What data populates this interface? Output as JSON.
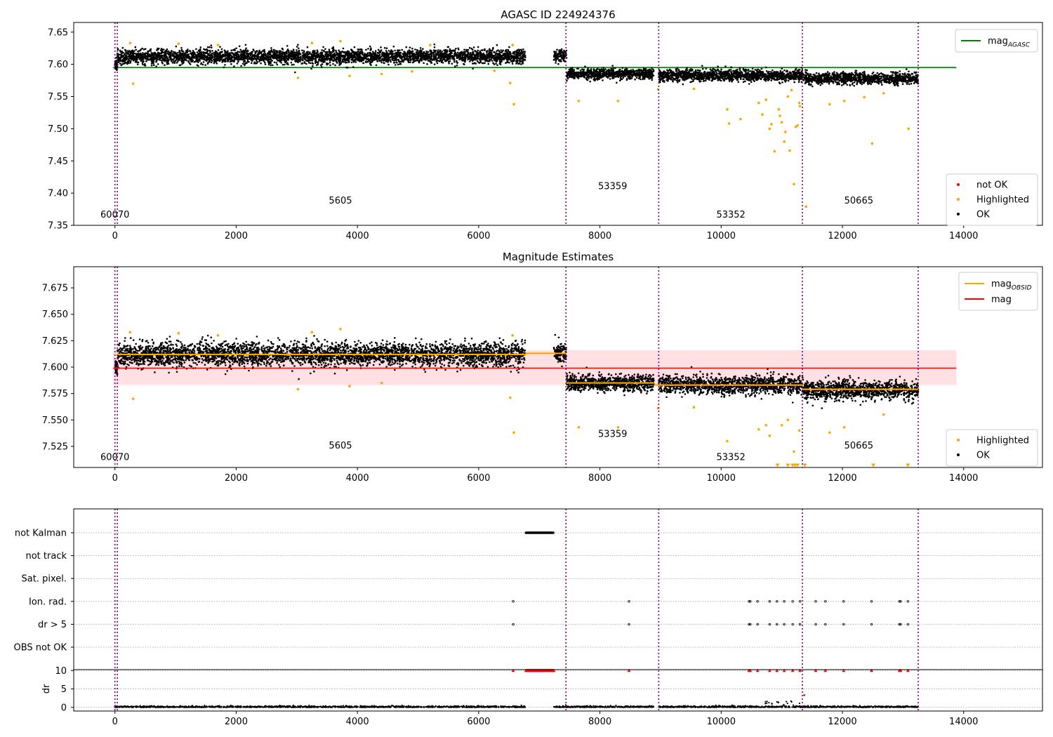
{
  "chart_data": [
    {
      "type": "scatter",
      "title": "AGASC ID 224924376",
      "xlim": [
        -680,
        15300
      ],
      "ylim": [
        7.35,
        7.665
      ],
      "x_ticks": [
        0,
        2000,
        4000,
        6000,
        8000,
        10000,
        12000,
        14000
      ],
      "y_ticks": [
        7.35,
        7.4,
        7.45,
        7.5,
        7.55,
        7.6,
        7.65
      ],
      "y_tick_labels": [
        "7.35",
        "7.40",
        "7.45",
        "7.50",
        "7.55",
        "7.60",
        "7.65"
      ],
      "legend_upper": {
        "position": "upper right",
        "entries": [
          {
            "label": "mag",
            "subscript": "AGASC",
            "color": "#008000",
            "marker": "line"
          }
        ]
      },
      "legend_lower": {
        "position": "lower right",
        "entries": [
          {
            "label": "not OK",
            "color": "#ff0000",
            "marker": "dot"
          },
          {
            "label": "Highlighted",
            "color": "#ffa500",
            "marker": "dot"
          },
          {
            "label": "OK",
            "color": "#000000",
            "marker": "dot"
          }
        ]
      },
      "hlines": [
        {
          "name": "mag_AGASC",
          "y": 7.595,
          "x": [
            -30,
            13880
          ],
          "color": "#008000"
        }
      ],
      "obsid_boundaries": [
        0,
        40,
        7440,
        8970,
        11340,
        13250
      ],
      "obsid_labels": [
        {
          "text": "60070",
          "x": 0,
          "y": 7.362
        },
        {
          "text": "5605",
          "x": 3720,
          "y": 7.384
        },
        {
          "text": "53359",
          "x": 8210,
          "y": 7.406
        },
        {
          "text": "53352",
          "x": 10160,
          "y": 7.362
        },
        {
          "text": "50665",
          "x": 12270,
          "y": 7.384
        }
      ],
      "ok_segments": [
        {
          "x": [
            0,
            40
          ],
          "mean": 7.599,
          "spread": 0.007
        },
        {
          "x": [
            40,
            6770
          ],
          "mean": 7.612,
          "spread": 0.01
        },
        {
          "x": [
            7240,
            7450
          ],
          "mean": 7.613,
          "spread": 0.008
        },
        {
          "x": [
            7450,
            8890
          ],
          "mean": 7.585,
          "spread": 0.007
        },
        {
          "x": [
            8970,
            11340
          ],
          "mean": 7.583,
          "spread": 0.008
        },
        {
          "x": [
            11340,
            13250
          ],
          "mean": 7.578,
          "spread": 0.008
        }
      ],
      "highlighted_points": [
        [
          300,
          7.57
        ],
        [
          3020,
          7.579
        ],
        [
          3870,
          7.582
        ],
        [
          4400,
          7.585
        ],
        [
          6520,
          7.571
        ],
        [
          6580,
          7.538
        ],
        [
          4900,
          7.589
        ],
        [
          6260,
          7.59
        ],
        [
          7650,
          7.543
        ],
        [
          8300,
          7.543
        ],
        [
          8960,
          7.561
        ],
        [
          9550,
          7.562
        ],
        [
          10100,
          7.53
        ],
        [
          10130,
          7.508
        ],
        [
          10320,
          7.515
        ],
        [
          10620,
          7.54
        ],
        [
          10680,
          7.522
        ],
        [
          10740,
          7.545
        ],
        [
          10800,
          7.5
        ],
        [
          10830,
          7.507
        ],
        [
          10880,
          7.465
        ],
        [
          10950,
          7.53
        ],
        [
          10970,
          7.52
        ],
        [
          11000,
          7.51
        ],
        [
          11040,
          7.48
        ],
        [
          11060,
          7.495
        ],
        [
          11100,
          7.55
        ],
        [
          11130,
          7.466
        ],
        [
          11160,
          7.56
        ],
        [
          11200,
          7.414
        ],
        [
          11230,
          7.503
        ],
        [
          11260,
          7.505
        ],
        [
          11290,
          7.54
        ],
        [
          11300,
          7.535
        ],
        [
          11400,
          7.379
        ],
        [
          11790,
          7.538
        ],
        [
          12030,
          7.543
        ],
        [
          12360,
          7.549
        ],
        [
          12680,
          7.555
        ],
        [
          12490,
          7.477
        ],
        [
          13090,
          7.5
        ],
        [
          250,
          7.633
        ],
        [
          1050,
          7.632
        ],
        [
          1700,
          7.63
        ],
        [
          3250,
          7.633
        ],
        [
          3720,
          7.636
        ],
        [
          5200,
          7.63
        ],
        [
          6560,
          7.63
        ]
      ],
      "not_ok_points": [],
      "xlabel": "",
      "ylabel": ""
    },
    {
      "type": "scatter",
      "title": "Magnitude Estimates",
      "xlim": [
        -680,
        15300
      ],
      "ylim": [
        7.505,
        7.695
      ],
      "x_ticks": [
        0,
        2000,
        4000,
        6000,
        8000,
        10000,
        12000,
        14000
      ],
      "y_ticks": [
        7.525,
        7.55,
        7.575,
        7.6,
        7.625,
        7.65,
        7.675
      ],
      "y_tick_labels": [
        "7.525",
        "7.550",
        "7.575",
        "7.600",
        "7.625",
        "7.650",
        "7.675"
      ],
      "legend_upper": {
        "position": "upper right",
        "entries": [
          {
            "label": "mag",
            "subscript": "OBSID",
            "color": "#ffa500",
            "marker": "line"
          },
          {
            "label": "mag",
            "subscript": "",
            "color": "#ff0000",
            "marker": "line"
          }
        ]
      },
      "legend_lower": {
        "position": "lower right",
        "entries": [
          {
            "label": "Highlighted",
            "color": "#ffa500",
            "marker": "dot"
          },
          {
            "label": "OK",
            "color": "#000000",
            "marker": "dot"
          }
        ]
      },
      "band": {
        "y": [
          7.583,
          7.616
        ],
        "x": [
          -30,
          13880
        ],
        "color": "#ffe0e3"
      },
      "hlines": [
        {
          "name": "mag",
          "y": 7.599,
          "x": [
            -30,
            13880
          ],
          "color": "#ff0000"
        }
      ],
      "obsid_mag_steps": [
        {
          "x": [
            0,
            40
          ],
          "y": 7.599
        },
        {
          "x": [
            40,
            6770
          ],
          "y": 7.612
        },
        {
          "x": [
            6770,
            7440
          ],
          "y": 7.613
        },
        {
          "x": [
            7440,
            8890
          ],
          "y": 7.585
        },
        {
          "x": [
            8890,
            8970
          ],
          "y": 7.583
        },
        {
          "x": [
            8970,
            11340
          ],
          "y": 7.583
        },
        {
          "x": [
            11340,
            13250
          ],
          "y": 7.579
        }
      ],
      "obsid_boundaries": [
        0,
        40,
        7440,
        8970,
        11340,
        13250
      ],
      "obsid_labels": [
        {
          "text": "60070",
          "x": 0,
          "y": 7.512
        },
        {
          "text": "5605",
          "x": 3720,
          "y": 7.523
        },
        {
          "text": "53359",
          "x": 8210,
          "y": 7.534
        },
        {
          "text": "53352",
          "x": 10160,
          "y": 7.512
        },
        {
          "text": "50665",
          "x": 12270,
          "y": 7.523
        }
      ],
      "ok_segments": [
        {
          "x": [
            0,
            40
          ],
          "mean": 7.599,
          "spread": 0.007
        },
        {
          "x": [
            40,
            6770
          ],
          "mean": 7.612,
          "spread": 0.01
        },
        {
          "x": [
            7240,
            7450
          ],
          "mean": 7.613,
          "spread": 0.008
        },
        {
          "x": [
            7450,
            8890
          ],
          "mean": 7.585,
          "spread": 0.007
        },
        {
          "x": [
            8970,
            11340
          ],
          "mean": 7.583,
          "spread": 0.008
        },
        {
          "x": [
            11340,
            13250
          ],
          "mean": 7.578,
          "spread": 0.008
        }
      ],
      "highlighted_points": [
        [
          300,
          7.57
        ],
        [
          3020,
          7.579
        ],
        [
          3870,
          7.582
        ],
        [
          4400,
          7.585
        ],
        [
          6520,
          7.571
        ],
        [
          6580,
          7.538
        ],
        [
          7650,
          7.543
        ],
        [
          8300,
          7.543
        ],
        [
          8960,
          7.561
        ],
        [
          9550,
          7.562
        ],
        [
          10100,
          7.53
        ],
        [
          10620,
          7.541
        ],
        [
          10740,
          7.545
        ],
        [
          10800,
          7.535
        ],
        [
          11000,
          7.545
        ],
        [
          11100,
          7.55
        ],
        [
          11200,
          7.52
        ],
        [
          11290,
          7.54
        ],
        [
          11790,
          7.538
        ],
        [
          12030,
          7.543
        ],
        [
          12680,
          7.555
        ],
        [
          250,
          7.633
        ],
        [
          1050,
          7.632
        ],
        [
          1700,
          7.63
        ],
        [
          3250,
          7.633
        ],
        [
          3720,
          7.636
        ],
        [
          6560,
          7.63
        ]
      ],
      "below_range_markers": [
        10930,
        11100,
        11180,
        11220,
        11260,
        11380,
        12510,
        13080
      ],
      "xlabel": "",
      "ylabel": ""
    },
    {
      "type": "scatter",
      "title": "",
      "xlim": [
        -680,
        15300
      ],
      "x_ticks": [
        0,
        2000,
        4000,
        6000,
        8000,
        10000,
        12000,
        14000
      ],
      "flag_rows": [
        "not Kalman",
        "not track",
        "Sat. pixel.",
        "Ion. rad.",
        "dr > 5",
        "OBS not OK"
      ],
      "flag_points": {
        "not Kalman": {
          "x_range": [
            6780,
            7240
          ]
        },
        "not track": [],
        "Sat. pixel.": [],
        "Ion. rad.": [
          6570,
          8480,
          10460,
          10480,
          10600,
          10800,
          10920,
          11040,
          11180,
          11300,
          11560,
          11720,
          12020,
          12480,
          12940,
          12960,
          13080
        ],
        "dr > 5": [
          6570,
          8480,
          10460,
          10480,
          10600,
          10800,
          10920,
          11040,
          11180,
          11300,
          11560,
          11720,
          12020,
          12480,
          12940,
          12960,
          13080
        ],
        "OBS not OK": []
      },
      "dr_panel": {
        "ylabel": "dr",
        "ylim": [
          -1,
          11
        ],
        "y_ticks": [
          0,
          5,
          10
        ],
        "y_tick_labels": [
          "0",
          "5",
          "10"
        ],
        "clipped_value": 10,
        "clipped_points": [
          6570,
          8480,
          10460,
          10480,
          10600,
          10800,
          10920,
          11040,
          11180,
          11300,
          11560,
          11720,
          12020,
          12480,
          12940,
          12960,
          13080
        ],
        "clipped_range": [
          6780,
          7240
        ],
        "typical_dr": 0.3
      },
      "obsid_boundaries": [
        0,
        40,
        7440,
        8970,
        11340,
        13250
      ],
      "xlabel": ""
    }
  ],
  "colors": {
    "ok": "#000000",
    "highlighted": "#ffa500",
    "not_ok": "#ff0000",
    "boundary": "#800080",
    "grid": "#b0b0b0"
  }
}
